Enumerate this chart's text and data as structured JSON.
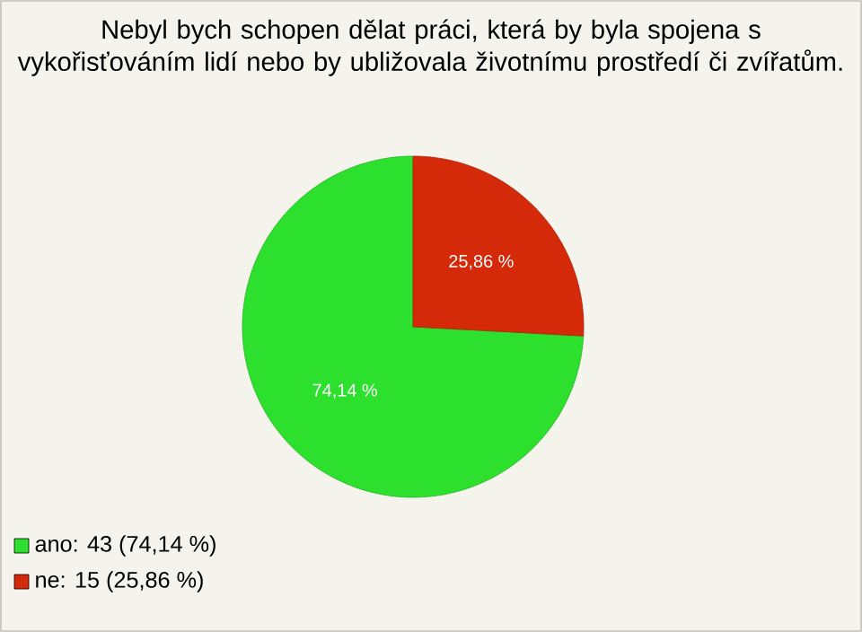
{
  "chart_data": {
    "type": "pie",
    "title": "Nebyl bych schopen dělat práci, která by byla spojena s vykořisťováním lidí nebo by ubližovala životnímu prostředí či zvířatům.",
    "categories": [
      "ano: 43 (74,14 %)",
      "ne: 15 (25,86 %)"
    ],
    "values": [
      74.14,
      25.86
    ],
    "colors": [
      "#2ee02e",
      "#d42a0a"
    ],
    "value_labels": [
      "74,14 %",
      "25,86 %"
    ],
    "legend": "bottom left"
  }
}
